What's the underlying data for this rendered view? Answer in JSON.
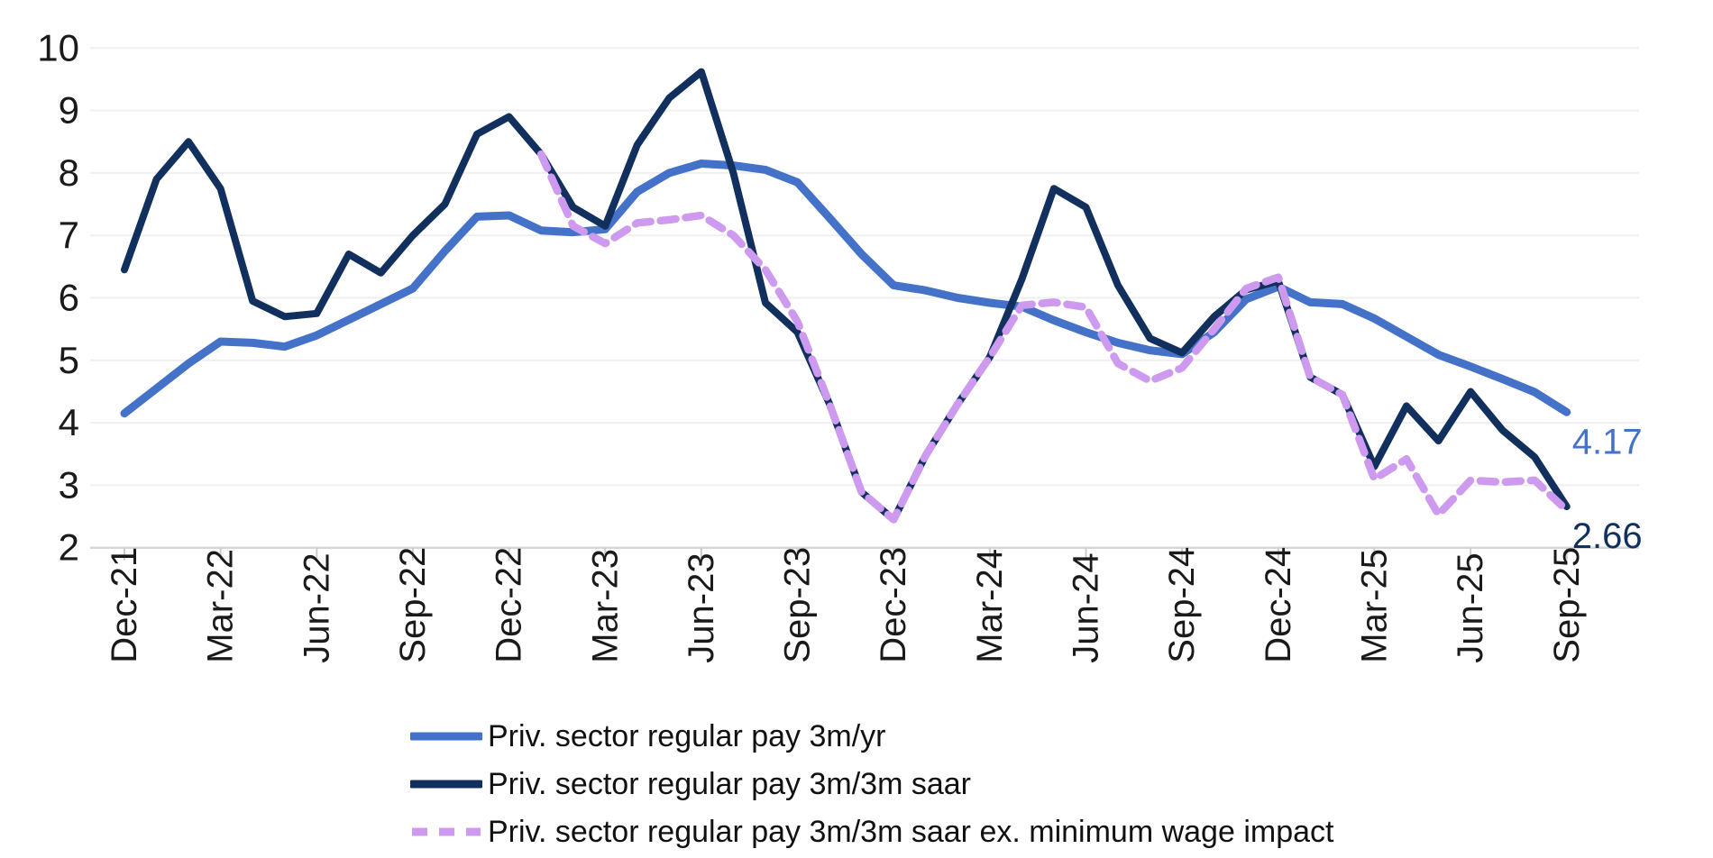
{
  "chart_data": {
    "type": "line",
    "title": "",
    "xlabel": "",
    "ylabel": "",
    "ylim": [
      2,
      10
    ],
    "yticks": [
      2,
      3,
      4,
      5,
      6,
      7,
      8,
      9,
      10
    ],
    "grid": "horizontal",
    "legend_position": "bottom-left",
    "x_categories": [
      "Dec-21",
      "Jan-22",
      "Feb-22",
      "Mar-22",
      "Apr-22",
      "May-22",
      "Jun-22",
      "Jul-22",
      "Aug-22",
      "Sep-22",
      "Oct-22",
      "Nov-22",
      "Dec-22",
      "Jan-23",
      "Feb-23",
      "Mar-23",
      "Apr-23",
      "May-23",
      "Jun-23",
      "Jul-23",
      "Aug-23",
      "Sep-23",
      "Oct-23",
      "Nov-23",
      "Dec-23",
      "Jan-24",
      "Feb-24",
      "Mar-24",
      "Apr-24",
      "May-24",
      "Jun-24",
      "Jul-24",
      "Aug-24",
      "Sep-24",
      "Oct-24",
      "Nov-24",
      "Dec-24",
      "Jan-25",
      "Feb-25",
      "Mar-25",
      "Apr-25",
      "May-25",
      "Jun-25",
      "Jul-25",
      "Aug-25",
      "Sep-25"
    ],
    "x_tick_labels": [
      "Dec-21",
      "Mar-22",
      "Jun-22",
      "Sep-22",
      "Dec-22",
      "Mar-23",
      "Jun-23",
      "Sep-23",
      "Dec-23",
      "Mar-24",
      "Jun-24",
      "Sep-24",
      "Dec-24",
      "Mar-25",
      "Jun-25",
      "Sep-25"
    ],
    "series": [
      {
        "name": "Priv. sector regular pay 3m/yr",
        "color": "#4472C9",
        "style": "solid",
        "values": [
          4.15,
          4.55,
          4.95,
          5.3,
          5.28,
          5.22,
          5.4,
          5.65,
          5.9,
          6.15,
          6.75,
          7.3,
          7.32,
          7.08,
          7.05,
          7.1,
          7.7,
          8.0,
          8.15,
          8.12,
          8.05,
          7.85,
          7.28,
          6.7,
          6.2,
          6.12,
          6.0,
          5.92,
          5.86,
          5.64,
          5.45,
          5.28,
          5.16,
          5.1,
          5.45,
          5.98,
          6.18,
          5.93,
          5.9,
          5.67,
          5.38,
          5.09,
          4.9,
          4.7,
          4.49,
          4.17
        ]
      },
      {
        "name": "Priv. sector regular pay 3m/3m saar",
        "color": "#12305E",
        "style": "solid",
        "values": [
          6.45,
          7.9,
          8.5,
          7.75,
          5.95,
          5.7,
          5.75,
          6.7,
          6.4,
          7.0,
          7.5,
          8.62,
          8.9,
          8.3,
          7.45,
          7.15,
          8.45,
          9.2,
          9.62,
          8.0,
          5.92,
          5.45,
          4.3,
          2.89,
          2.45,
          3.48,
          4.3,
          5.05,
          6.3,
          7.75,
          7.45,
          6.2,
          5.35,
          5.12,
          5.7,
          6.13,
          6.27,
          4.73,
          4.45,
          3.3,
          4.27,
          3.71,
          4.5,
          3.88,
          3.45,
          2.66
        ]
      },
      {
        "name": "Priv. sector regular pay 3m/3m saar ex. minimum wage impact",
        "color": "#CD9AF0",
        "style": "dashed",
        "values": [
          null,
          null,
          null,
          null,
          null,
          null,
          null,
          null,
          null,
          null,
          null,
          null,
          null,
          8.3,
          7.15,
          6.87,
          7.2,
          7.25,
          7.32,
          7.0,
          6.45,
          5.62,
          4.3,
          2.89,
          2.45,
          3.48,
          4.3,
          5.05,
          5.88,
          5.93,
          5.85,
          4.95,
          4.67,
          4.88,
          5.5,
          6.15,
          6.33,
          4.73,
          4.45,
          3.1,
          3.42,
          2.53,
          3.08,
          3.05,
          3.08,
          2.6
        ]
      }
    ],
    "end_labels": [
      {
        "text": "4.17",
        "series": 0
      },
      {
        "text": "2.66",
        "series": 1
      }
    ]
  },
  "style_colors": {
    "gridline": "#EFEFEF",
    "axis_line": "#D6D6D6",
    "tick_mark": "#CCCCCC",
    "axis_text": "#1A1A1A"
  }
}
